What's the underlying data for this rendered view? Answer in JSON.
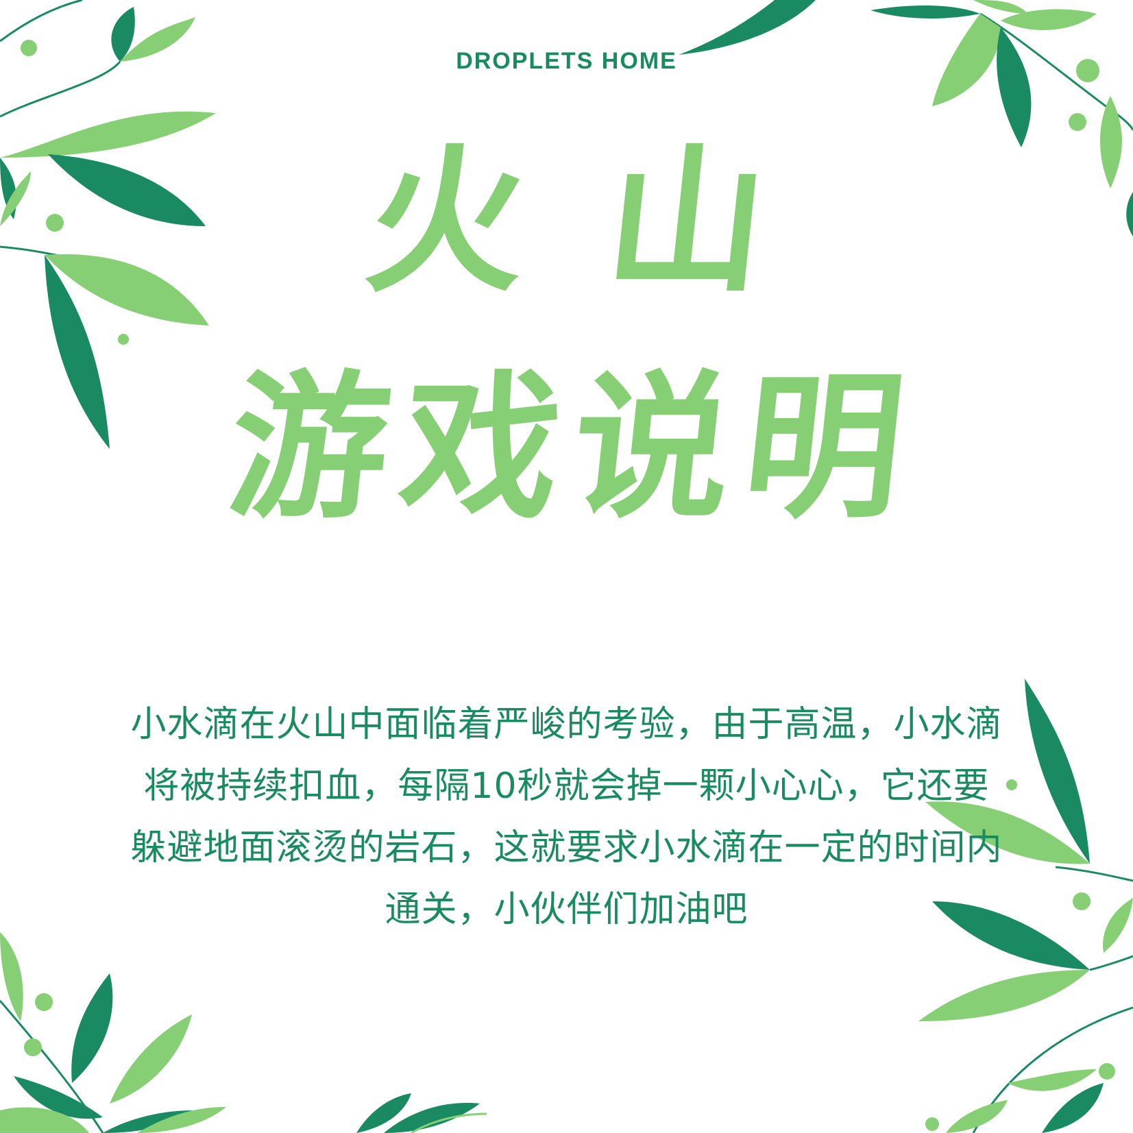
{
  "brand": {
    "name": "DROPLETS HOME"
  },
  "title": {
    "line1": "火山",
    "line2": "游戏说明"
  },
  "description": "小水滴在火山中面临着严峻的考验，由于高温，小水滴将被持续扣血，每隔10秒就会掉一颗小心心，它还要躲避地面滚烫的岩石，这就要求小水滴在一定的时间内通关，小伙伴们加油吧",
  "colors": {
    "dark_green": "#1a8a62",
    "light_green": "#86cf74",
    "background": "#ffffff"
  },
  "decorations": [
    "leaf-branch",
    "leaf-branch",
    "leaf-branch",
    "leaf-branch",
    "leaf-branch",
    "leaf-branch"
  ]
}
